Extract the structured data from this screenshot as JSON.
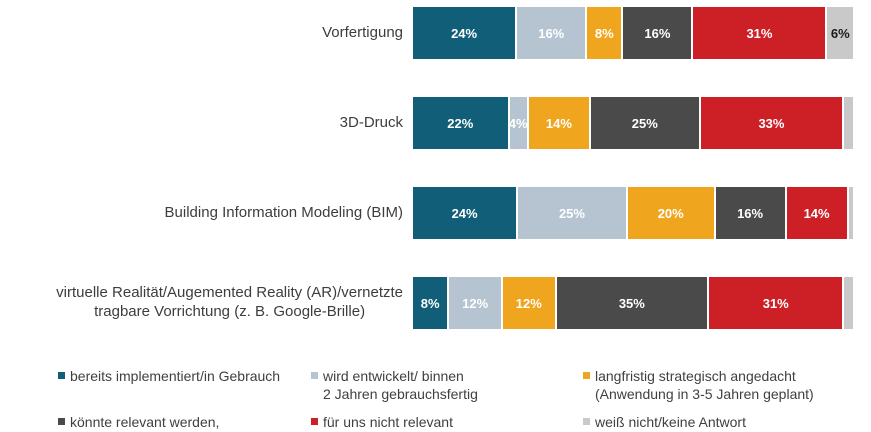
{
  "chart_data": {
    "type": "bar",
    "variant": "horizontal-stacked",
    "unit": "%",
    "title": "",
    "xlabel": "",
    "ylabel": "",
    "xlim": [
      0,
      100
    ],
    "grid": false,
    "legend_position": "bottom",
    "label_text_color_on_dark": "#ffffff",
    "label_text_color_on_light": "#1a1a1a",
    "series": [
      {
        "name": "bereits implementiert/in Gebrauch",
        "color": "#115e78",
        "light": false
      },
      {
        "name": "wird entwickelt/ binnen\n2 Jahren gebrauchsfertig",
        "color": "#b6c4d2",
        "light": false
      },
      {
        "name": "langfristig strategisch angedacht\n(Anwendung in 3-5 Jahren geplant)",
        "color": "#f0a51e",
        "light": false
      },
      {
        "name": "könnte relevant werden,",
        "color": "#4b4a4a",
        "light": false
      },
      {
        "name": "für uns nicht relevant",
        "color": "#cd2026",
        "light": false
      },
      {
        "name": "weiß nicht/keine Antwort",
        "color": "#c9c9c9",
        "light": true
      }
    ],
    "rows": [
      {
        "label": "Vorfertigung",
        "values": [
          24,
          16,
          8,
          16,
          31,
          6
        ],
        "labels": [
          "24%",
          "16%",
          "8%",
          "16%",
          "31%",
          "6%"
        ]
      },
      {
        "label": "3D-Druck",
        "values": [
          22,
          4,
          14,
          25,
          33,
          2
        ],
        "labels": [
          "22%",
          "4%",
          "14%",
          "25%",
          "33%",
          ""
        ]
      },
      {
        "label": "Building Information Modeling (BIM)",
        "values": [
          24,
          25,
          20,
          16,
          14,
          1
        ],
        "labels": [
          "24%",
          "25%",
          "20%",
          "16%",
          "14%",
          ""
        ]
      },
      {
        "label": "virtuelle Realität/Augemented Reality (AR)/vernetzte\ntragbare Vorrichtung (z. B. Google-Brille)",
        "values": [
          8,
          12,
          12,
          35,
          31,
          2
        ],
        "labels": [
          "8%",
          "12%",
          "12%",
          "35%",
          "31%",
          ""
        ]
      }
    ]
  }
}
